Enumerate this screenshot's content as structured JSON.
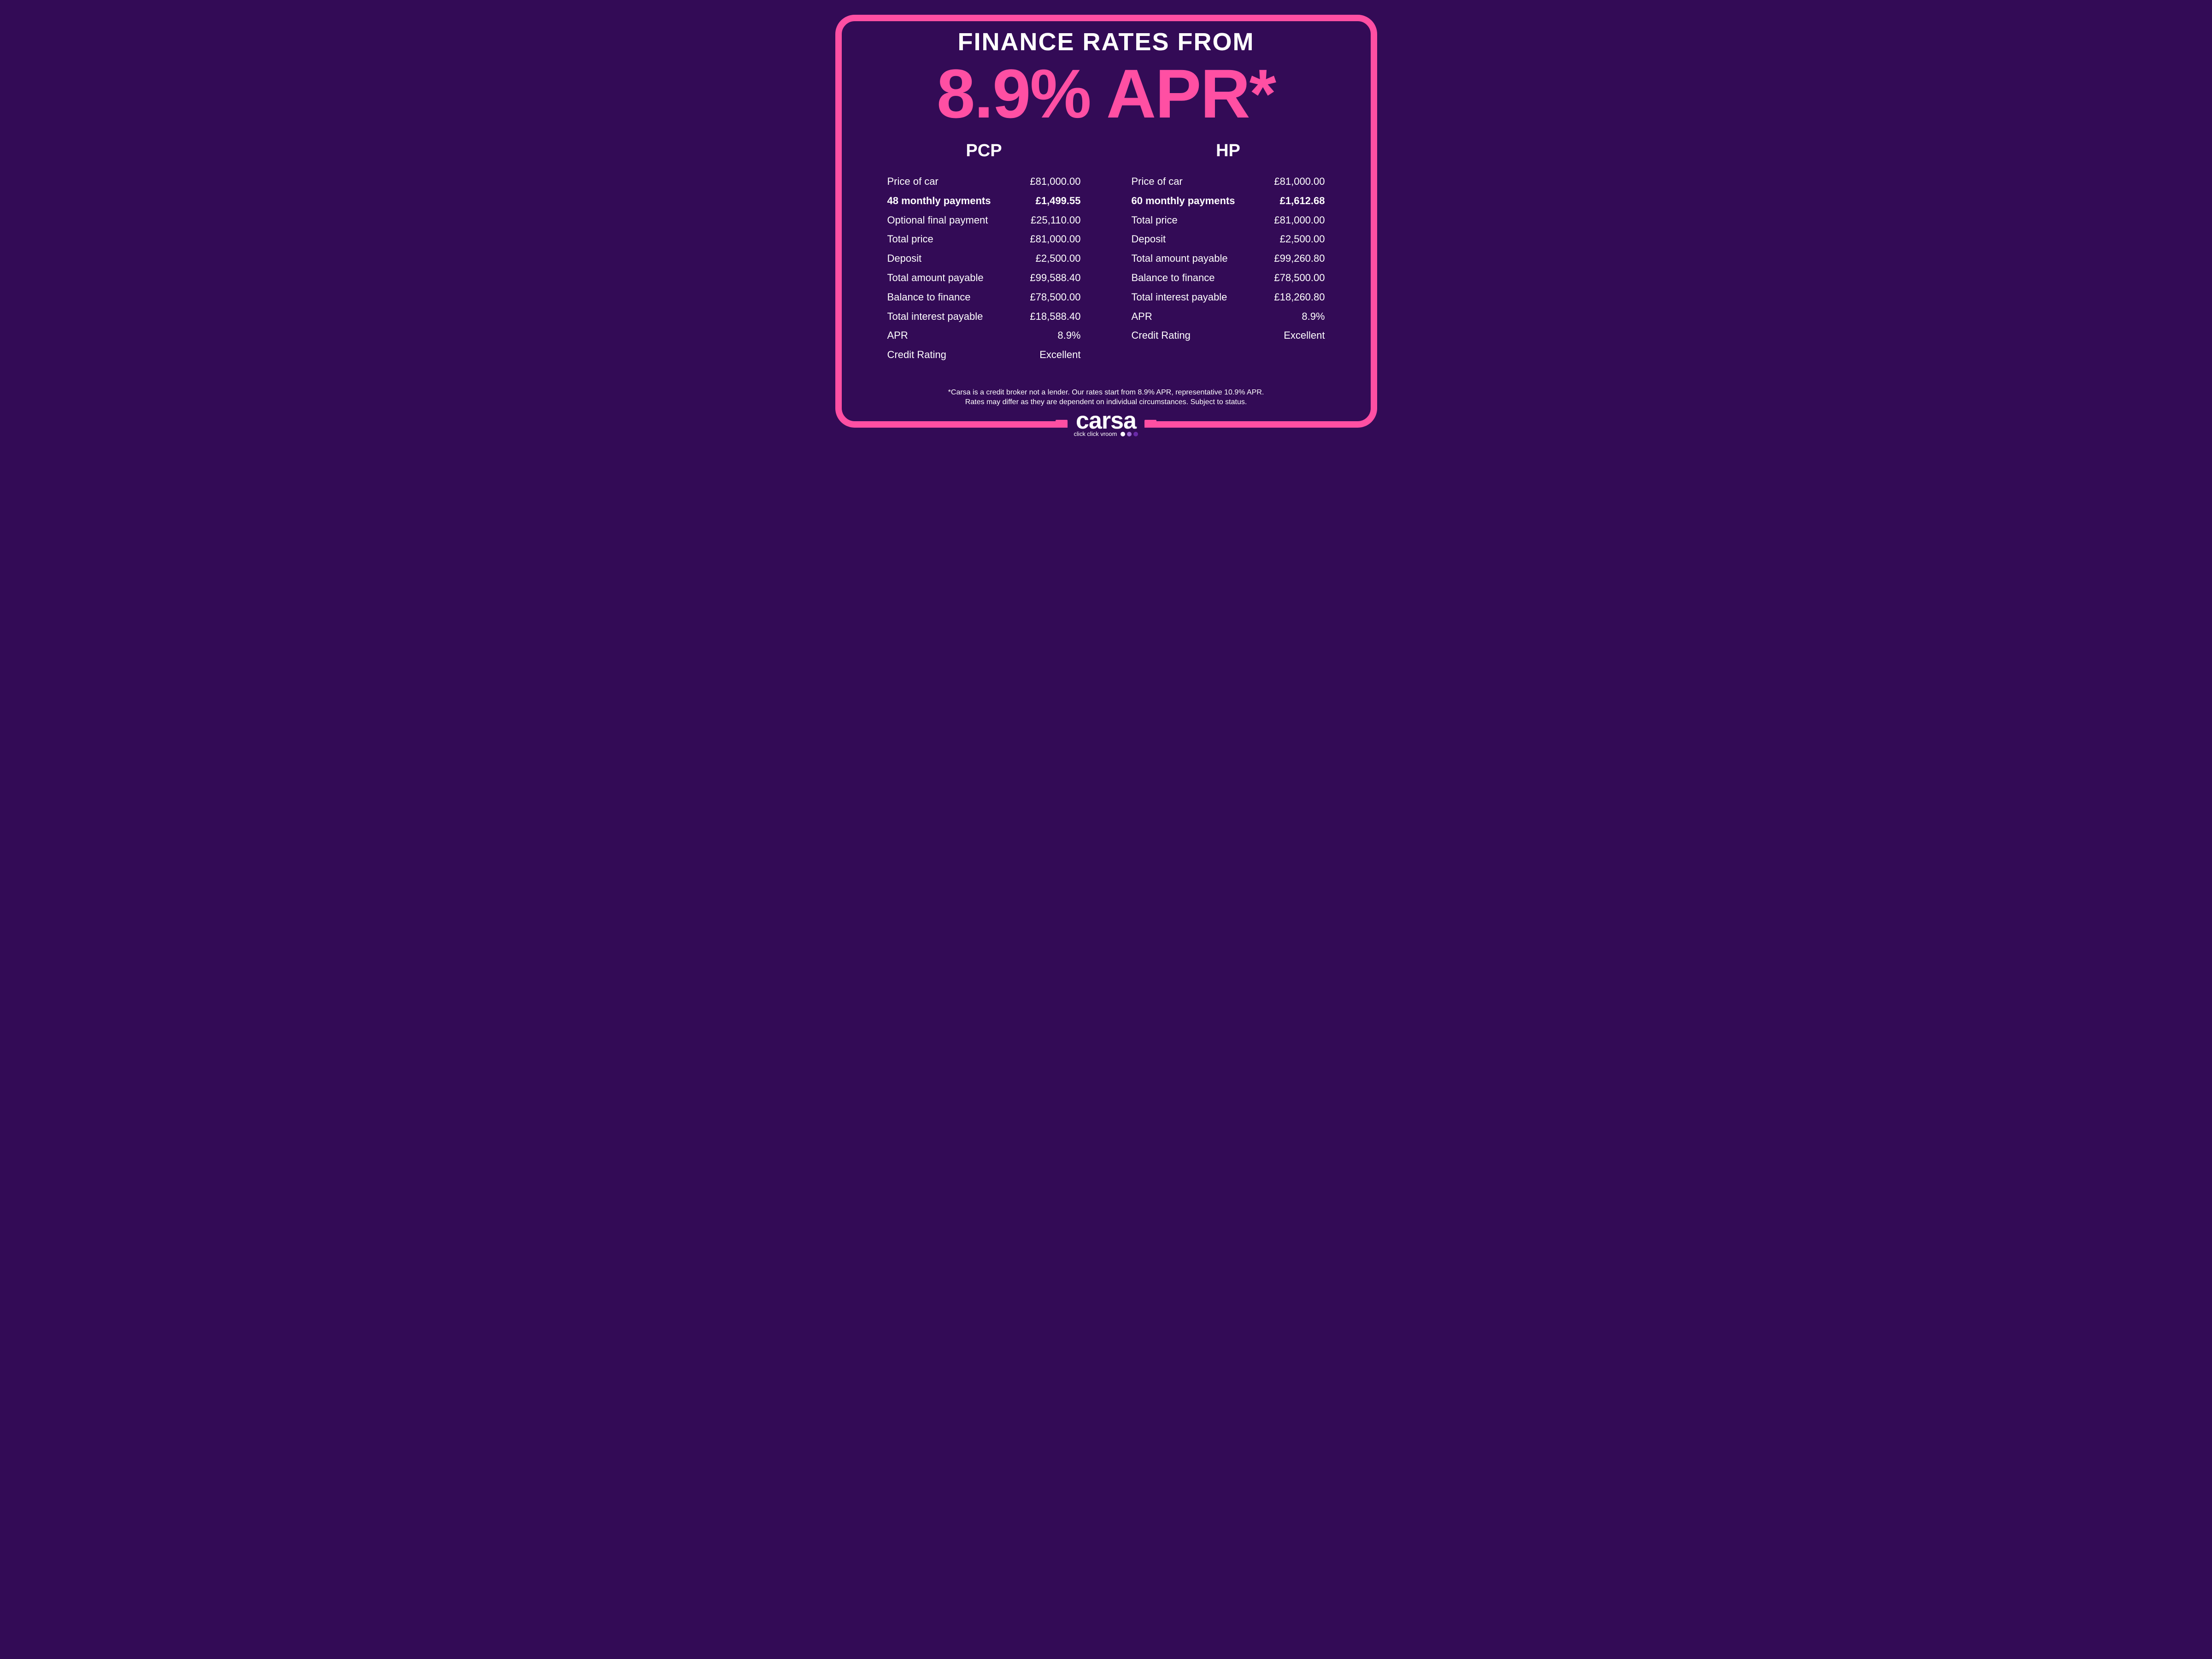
{
  "colors": {
    "background": "#330b56",
    "accent": "#ff4fa3",
    "text": "#ffffff",
    "dot1": "#ffffff",
    "dot2": "#a06bd4",
    "dot3": "#6a2aa8"
  },
  "header": {
    "title": "FINANCE RATES FROM",
    "apr_headline": "8.9% APR*"
  },
  "pcp": {
    "heading": "PCP",
    "rows": [
      {
        "label": "Price of car",
        "value": "£81,000.00",
        "bold": false
      },
      {
        "label": "48 monthly payments",
        "value": "£1,499.55",
        "bold": true
      },
      {
        "label": "Optional final payment",
        "value": "£25,110.00",
        "bold": false
      },
      {
        "label": "Total price",
        "value": "£81,000.00",
        "bold": false
      },
      {
        "label": "Deposit",
        "value": "£2,500.00",
        "bold": false
      },
      {
        "label": "Total amount payable",
        "value": "£99,588.40",
        "bold": false
      },
      {
        "label": "Balance to finance",
        "value": "£78,500.00",
        "bold": false
      },
      {
        "label": "Total interest payable",
        "value": "£18,588.40",
        "bold": false
      },
      {
        "label": "APR",
        "value": "8.9%",
        "bold": false
      },
      {
        "label": "Credit Rating",
        "value": "Excellent",
        "bold": false
      }
    ]
  },
  "hp": {
    "heading": "HP",
    "rows": [
      {
        "label": "Price of car",
        "value": "£81,000.00",
        "bold": false
      },
      {
        "label": "60 monthly payments",
        "value": "£1,612.68",
        "bold": true
      },
      {
        "label": "Total price",
        "value": "£81,000.00",
        "bold": false
      },
      {
        "label": "Deposit",
        "value": "£2,500.00",
        "bold": false
      },
      {
        "label": "Total amount payable",
        "value": "£99,260.80",
        "bold": false
      },
      {
        "label": "Balance to finance",
        "value": "£78,500.00",
        "bold": false
      },
      {
        "label": "Total interest payable",
        "value": "£18,260.80",
        "bold": false
      },
      {
        "label": "APR",
        "value": "8.9%",
        "bold": false
      },
      {
        "label": "Credit Rating",
        "value": "Excellent",
        "bold": false
      }
    ]
  },
  "disclaimer": {
    "line1": "*Carsa is a credit broker not a lender. Our rates start from 8.9% APR, representative 10.9% APR.",
    "line2": "Rates may differ as they are dependent on individual circumstances. Subject to status."
  },
  "brand": {
    "name": "carsa",
    "tagline": "click click vroom"
  }
}
